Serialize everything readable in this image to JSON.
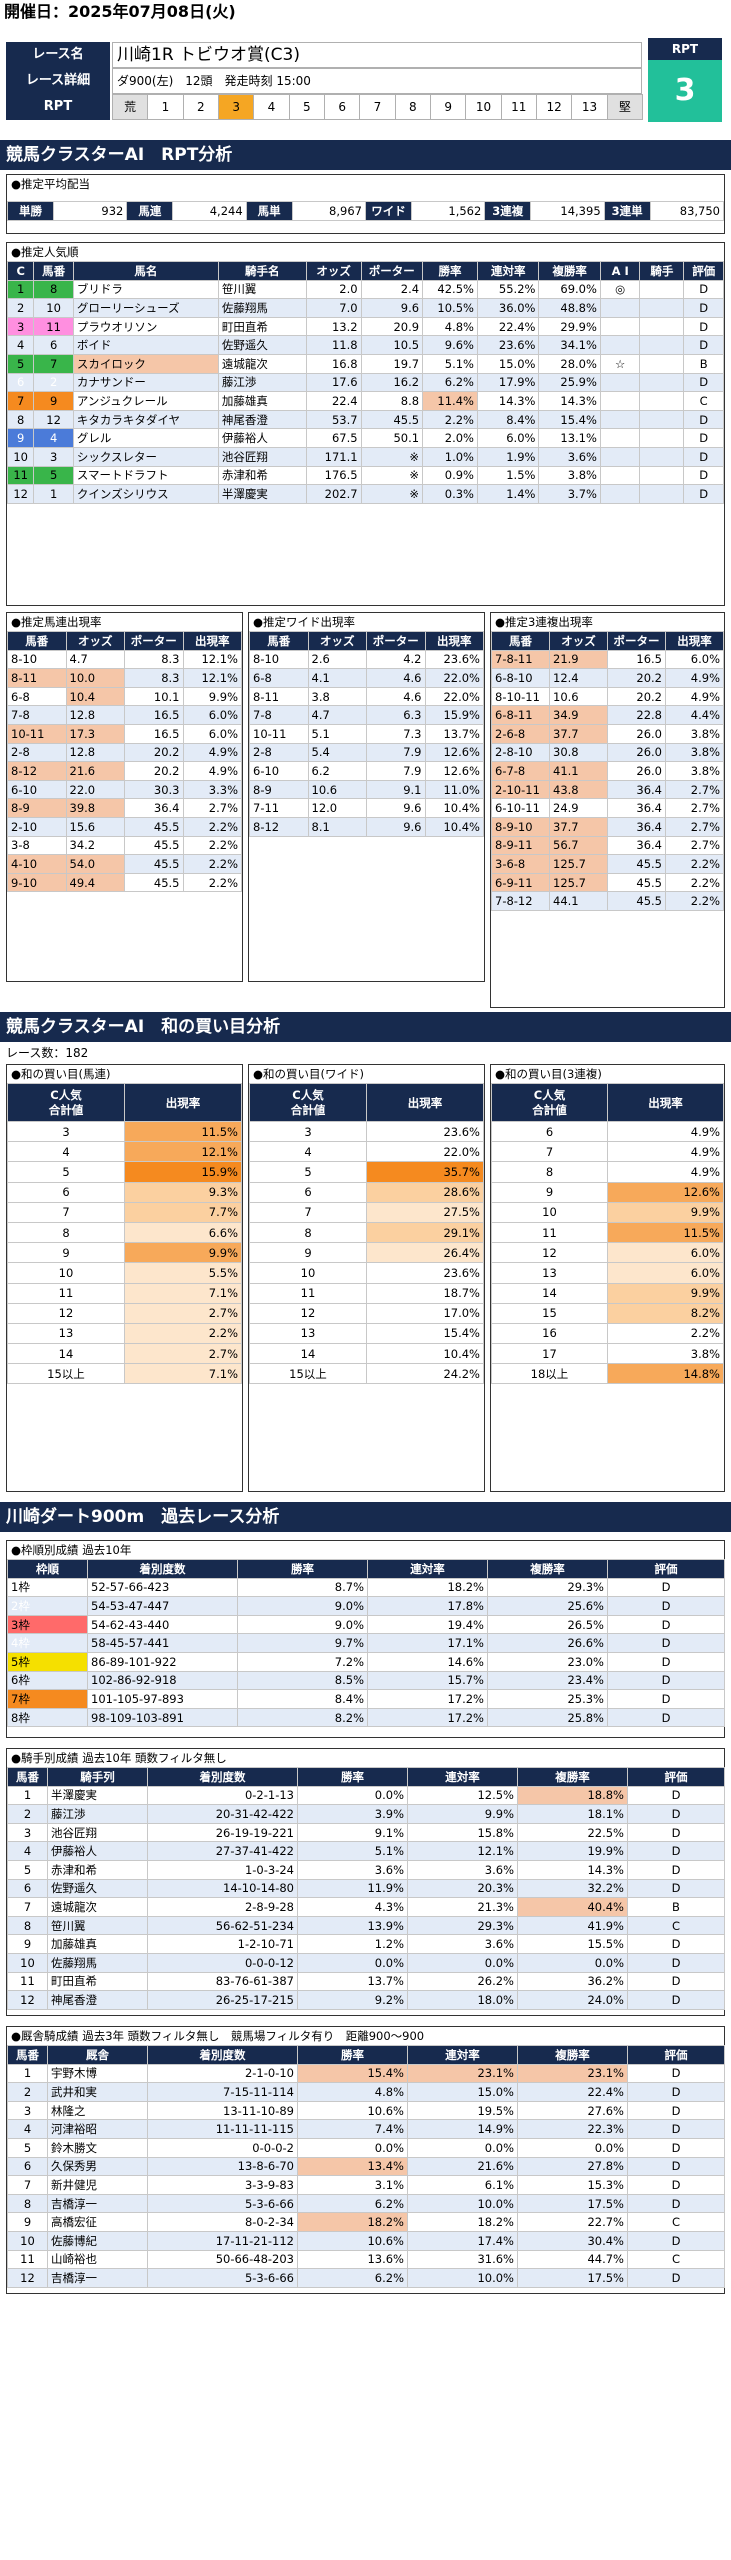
{
  "header": {
    "date_label": "開催日：2025年07月08日(火)"
  },
  "race": {
    "name_label": "レース名",
    "name": "川崎1R トビウオ賞(C3)",
    "detail_label": "レース詳細",
    "detail": "ダ900(左)　12頭　発走時刻 15:00",
    "rpt_label": "RPT",
    "rpt_scale": [
      "荒",
      "1",
      "2",
      "3",
      "4",
      "5",
      "6",
      "7",
      "8",
      "9",
      "10",
      "11",
      "12",
      "13",
      "堅"
    ],
    "rpt_top": "RPT",
    "rpt_value": "3"
  },
  "sec1": {
    "title": "競馬クラスターAI　RPT分析"
  },
  "payout": {
    "title": "●推定平均配当",
    "items": [
      [
        "単勝",
        "932"
      ],
      [
        "馬連",
        "4,244"
      ],
      [
        "馬単",
        "8,967"
      ],
      [
        "ワイド",
        "1,562"
      ],
      [
        "3連複",
        "14,395"
      ],
      [
        "3連単",
        "83,750"
      ]
    ]
  },
  "pop": {
    "title": "●推定人気順",
    "headers": [
      "C",
      "馬番",
      "馬名",
      "騎手名",
      "オッズ",
      "ポーター",
      "勝率",
      "連対率",
      "複勝率",
      "A I",
      "騎手",
      "評価"
    ],
    "rows": [
      [
        "1",
        "8",
        "ブリドラ",
        "笹川翼",
        "2.0",
        "2.4",
        "42.5%",
        "55.2%",
        "69.0%",
        "◎",
        "",
        "D"
      ],
      [
        "2",
        "10",
        "グローリーシューズ",
        "佐藤翔馬",
        "7.0",
        "9.6",
        "10.5%",
        "36.0%",
        "48.8%",
        "",
        "",
        "D"
      ],
      [
        "3",
        "11",
        "プラウオリソン",
        "町田直希",
        "13.2",
        "20.9",
        "4.8%",
        "22.4%",
        "29.9%",
        "",
        "",
        "D"
      ],
      [
        "4",
        "6",
        "ボイド",
        "佐野遥久",
        "11.8",
        "10.5",
        "9.6%",
        "23.6%",
        "34.1%",
        "",
        "",
        "D"
      ],
      [
        "5",
        "7",
        "スカイロック",
        "遠城龍次",
        "16.8",
        "19.7",
        "5.1%",
        "15.0%",
        "28.0%",
        "☆",
        "",
        "B"
      ],
      [
        "6",
        "2",
        "カナサンドー",
        "藤江渉",
        "17.6",
        "16.2",
        "6.2%",
        "17.9%",
        "25.9%",
        "",
        "",
        "D"
      ],
      [
        "7",
        "9",
        "アンジュクレール",
        "加藤雄真",
        "22.4",
        "8.8",
        "11.4%",
        "14.3%",
        "14.3%",
        "",
        "",
        "C"
      ],
      [
        "8",
        "12",
        "キタカラキタダイヤ",
        "神尾香澄",
        "53.7",
        "45.5",
        "2.2%",
        "8.4%",
        "15.4%",
        "",
        "",
        "D"
      ],
      [
        "9",
        "4",
        "グレル",
        "伊藤裕人",
        "67.5",
        "50.1",
        "2.0%",
        "6.0%",
        "13.1%",
        "",
        "",
        "D"
      ],
      [
        "10",
        "3",
        "シックスレター",
        "池谷匠翔",
        "171.1",
        "※",
        "1.0%",
        "1.9%",
        "3.6%",
        "",
        "",
        "D"
      ],
      [
        "11",
        "5",
        "スマートドラフト",
        "赤津和希",
        "176.5",
        "※",
        "0.9%",
        "1.5%",
        "3.8%",
        "",
        "",
        "D"
      ],
      [
        "12",
        "1",
        "クインズシリウス",
        "半澤慶実",
        "202.7",
        "※",
        "0.3%",
        "1.4%",
        "3.7%",
        "",
        "",
        "D"
      ]
    ]
  },
  "umaren": {
    "title": "●推定馬連出現率",
    "headers": [
      "馬番",
      "オッズ",
      "ポーター",
      "出現率"
    ],
    "rows": [
      [
        "8-10",
        "4.7",
        "8.3",
        "12.1%"
      ],
      [
        "8-11",
        "10.0",
        "8.3",
        "12.1%"
      ],
      [
        "6-8",
        "10.4",
        "10.1",
        "9.9%"
      ],
      [
        "7-8",
        "12.8",
        "16.5",
        "6.0%"
      ],
      [
        "10-11",
        "17.3",
        "16.5",
        "6.0%"
      ],
      [
        "2-8",
        "12.8",
        "20.2",
        "4.9%"
      ],
      [
        "8-12",
        "21.6",
        "20.2",
        "4.9%"
      ],
      [
        "6-10",
        "22.0",
        "30.3",
        "3.3%"
      ],
      [
        "8-9",
        "39.8",
        "36.4",
        "2.7%"
      ],
      [
        "2-10",
        "15.6",
        "45.5",
        "2.2%"
      ],
      [
        "3-8",
        "34.2",
        "45.5",
        "2.2%"
      ],
      [
        "4-10",
        "54.0",
        "45.5",
        "2.2%"
      ],
      [
        "9-10",
        "49.4",
        "45.5",
        "2.2%"
      ]
    ]
  },
  "wide": {
    "title": "●推定ワイド出現率",
    "headers": [
      "馬番",
      "オッズ",
      "ポーター",
      "出現率"
    ],
    "rows": [
      [
        "8-10",
        "2.6",
        "4.2",
        "23.6%"
      ],
      [
        "6-8",
        "4.1",
        "4.6",
        "22.0%"
      ],
      [
        "8-11",
        "3.8",
        "4.6",
        "22.0%"
      ],
      [
        "7-8",
        "4.7",
        "6.3",
        "15.9%"
      ],
      [
        "10-11",
        "5.1",
        "7.3",
        "13.7%"
      ],
      [
        "2-8",
        "5.4",
        "7.9",
        "12.6%"
      ],
      [
        "6-10",
        "6.2",
        "7.9",
        "12.6%"
      ],
      [
        "8-9",
        "10.6",
        "9.1",
        "11.0%"
      ],
      [
        "7-11",
        "12.0",
        "9.6",
        "10.4%"
      ],
      [
        "8-12",
        "8.1",
        "9.6",
        "10.4%"
      ]
    ]
  },
  "sanren": {
    "title": "●推定3連複出現率",
    "headers": [
      "馬番",
      "オッズ",
      "ポーター",
      "出現率"
    ],
    "rows": [
      [
        "7-8-11",
        "21.9",
        "16.5",
        "6.0%"
      ],
      [
        "6-8-10",
        "12.4",
        "20.2",
        "4.9%"
      ],
      [
        "8-10-11",
        "10.6",
        "20.2",
        "4.9%"
      ],
      [
        "6-8-11",
        "34.9",
        "22.8",
        "4.4%"
      ],
      [
        "2-6-8",
        "37.7",
        "26.0",
        "3.8%"
      ],
      [
        "2-8-10",
        "30.8",
        "26.0",
        "3.8%"
      ],
      [
        "6-7-8",
        "41.1",
        "26.0",
        "3.8%"
      ],
      [
        "2-10-11",
        "43.8",
        "36.4",
        "2.7%"
      ],
      [
        "6-10-11",
        "24.9",
        "36.4",
        "2.7%"
      ],
      [
        "8-9-10",
        "37.7",
        "36.4",
        "2.7%"
      ],
      [
        "8-9-11",
        "56.7",
        "36.4",
        "2.7%"
      ],
      [
        "3-6-8",
        "125.7",
        "45.5",
        "2.2%"
      ],
      [
        "6-9-11",
        "125.7",
        "45.5",
        "2.2%"
      ],
      [
        "7-8-12",
        "44.1",
        "45.5",
        "2.2%"
      ]
    ]
  },
  "sec2": {
    "title": "競馬クラスターAI　和の買い目分析",
    "count_label": "レース数：182"
  },
  "sum_umaren": {
    "title": "●和の買い目(馬連)",
    "h1": "C人気",
    "h1b": "合計値",
    "h2": "出現率",
    "rows": [
      [
        "3",
        "11.5%"
      ],
      [
        "4",
        "12.1%"
      ],
      [
        "5",
        "15.9%"
      ],
      [
        "6",
        "9.3%"
      ],
      [
        "7",
        "7.7%"
      ],
      [
        "8",
        "6.6%"
      ],
      [
        "9",
        "9.9%"
      ],
      [
        "10",
        "5.5%"
      ],
      [
        "11",
        "7.1%"
      ],
      [
        "12",
        "2.7%"
      ],
      [
        "13",
        "2.2%"
      ],
      [
        "14",
        "2.7%"
      ],
      [
        "15以上",
        "7.1%"
      ]
    ]
  },
  "sum_wide": {
    "title": "●和の買い目(ワイド)",
    "h1": "C人気",
    "h1b": "合計値",
    "h2": "出現率",
    "rows": [
      [
        "3",
        "23.6%"
      ],
      [
        "4",
        "22.0%"
      ],
      [
        "5",
        "35.7%"
      ],
      [
        "6",
        "28.6%"
      ],
      [
        "7",
        "27.5%"
      ],
      [
        "8",
        "29.1%"
      ],
      [
        "9",
        "26.4%"
      ],
      [
        "10",
        "23.6%"
      ],
      [
        "11",
        "18.7%"
      ],
      [
        "12",
        "17.0%"
      ],
      [
        "13",
        "15.4%"
      ],
      [
        "14",
        "10.4%"
      ],
      [
        "15以上",
        "24.2%"
      ]
    ]
  },
  "sum_sanren": {
    "title": "●和の買い目(3連複)",
    "h1": "C人気",
    "h1b": "合計値",
    "h2": "出現率",
    "rows": [
      [
        "6",
        "4.9%"
      ],
      [
        "7",
        "4.9%"
      ],
      [
        "8",
        "4.9%"
      ],
      [
        "9",
        "12.6%"
      ],
      [
        "10",
        "9.9%"
      ],
      [
        "11",
        "11.5%"
      ],
      [
        "12",
        "6.0%"
      ],
      [
        "13",
        "6.0%"
      ],
      [
        "14",
        "9.9%"
      ],
      [
        "15",
        "8.2%"
      ],
      [
        "16",
        "2.2%"
      ],
      [
        "17",
        "3.8%"
      ],
      [
        "18以上",
        "14.8%"
      ]
    ]
  },
  "sec3": {
    "title": "川崎ダート900m　過去レース分析"
  },
  "waku": {
    "title": "●枠順別成績 過去10年",
    "headers": [
      "枠順",
      "着別度数",
      "勝率",
      "連対率",
      "複勝率",
      "評価"
    ],
    "rows": [
      [
        "1枠",
        "52-57-66-423",
        "8.7%",
        "18.2%",
        "29.3%",
        "D"
      ],
      [
        "2枠",
        "54-53-47-447",
        "9.0%",
        "17.8%",
        "25.6%",
        "D"
      ],
      [
        "3枠",
        "54-62-43-440",
        "9.0%",
        "19.4%",
        "26.5%",
        "D"
      ],
      [
        "4枠",
        "58-45-57-441",
        "9.7%",
        "17.1%",
        "26.6%",
        "D"
      ],
      [
        "5枠",
        "86-89-101-922",
        "7.2%",
        "14.6%",
        "23.0%",
        "D"
      ],
      [
        "6枠",
        "102-86-92-918",
        "8.5%",
        "15.7%",
        "23.4%",
        "D"
      ],
      [
        "7枠",
        "101-105-97-893",
        "8.4%",
        "17.2%",
        "25.3%",
        "D"
      ],
      [
        "8枠",
        "98-109-103-891",
        "8.2%",
        "17.2%",
        "25.8%",
        "D"
      ]
    ]
  },
  "jockey": {
    "title": "●騎手別成績 過去10年 頭数フィルタ無し",
    "headers": [
      "馬番",
      "騎手列",
      "着別度数",
      "勝率",
      "連対率",
      "複勝率",
      "評価"
    ],
    "rows": [
      [
        "1",
        "半澤慶実",
        "0-2-1-13",
        "0.0%",
        "12.5%",
        "18.8%",
        "D"
      ],
      [
        "2",
        "藤江渉",
        "20-31-42-422",
        "3.9%",
        "9.9%",
        "18.1%",
        "D"
      ],
      [
        "3",
        "池谷匠翔",
        "26-19-19-221",
        "9.1%",
        "15.8%",
        "22.5%",
        "D"
      ],
      [
        "4",
        "伊藤裕人",
        "27-37-41-422",
        "5.1%",
        "12.1%",
        "19.9%",
        "D"
      ],
      [
        "5",
        "赤津和希",
        "1-0-3-24",
        "3.6%",
        "3.6%",
        "14.3%",
        "D"
      ],
      [
        "6",
        "佐野遥久",
        "14-10-14-80",
        "11.9%",
        "20.3%",
        "32.2%",
        "D"
      ],
      [
        "7",
        "遠城龍次",
        "2-8-9-28",
        "4.3%",
        "21.3%",
        "40.4%",
        "B"
      ],
      [
        "8",
        "笹川翼",
        "56-62-51-234",
        "13.9%",
        "29.3%",
        "41.9%",
        "C"
      ],
      [
        "9",
        "加藤雄真",
        "1-2-10-71",
        "1.2%",
        "3.6%",
        "15.5%",
        "D"
      ],
      [
        "10",
        "佐藤翔馬",
        "0-0-0-12",
        "0.0%",
        "0.0%",
        "0.0%",
        "D"
      ],
      [
        "11",
        "町田直希",
        "83-76-61-387",
        "13.7%",
        "26.2%",
        "36.2%",
        "D"
      ],
      [
        "12",
        "神尾香澄",
        "26-25-17-215",
        "9.2%",
        "18.0%",
        "24.0%",
        "D"
      ]
    ]
  },
  "trainer": {
    "title": "●厩舎騎成績 過去3年 頭数フィルタ無し　競馬場フィルタ有り　距離900～900",
    "headers": [
      "馬番",
      "厩舎",
      "着別度数",
      "勝率",
      "連対率",
      "複勝率",
      "評価"
    ],
    "rows": [
      [
        "1",
        "宇野木博",
        "2-1-0-10",
        "15.4%",
        "23.1%",
        "23.1%",
        "D"
      ],
      [
        "2",
        "武井和実",
        "7-15-11-114",
        "4.8%",
        "15.0%",
        "22.4%",
        "D"
      ],
      [
        "3",
        "林隆之",
        "13-11-10-89",
        "10.6%",
        "19.5%",
        "27.6%",
        "D"
      ],
      [
        "4",
        "河津裕昭",
        "11-11-11-115",
        "7.4%",
        "14.9%",
        "22.3%",
        "D"
      ],
      [
        "5",
        "鈴木勝文",
        "0-0-0-2",
        "0.0%",
        "0.0%",
        "0.0%",
        "D"
      ],
      [
        "6",
        "久保秀男",
        "13-8-6-70",
        "13.4%",
        "21.6%",
        "27.8%",
        "D"
      ],
      [
        "7",
        "新井健児",
        "3-3-9-83",
        "3.1%",
        "6.1%",
        "15.3%",
        "D"
      ],
      [
        "8",
        "吉橋淳一",
        "5-3-6-66",
        "6.2%",
        "10.0%",
        "17.5%",
        "D"
      ],
      [
        "9",
        "高橋宏征",
        "8-0-2-34",
        "18.2%",
        "18.2%",
        "22.7%",
        "C"
      ],
      [
        "10",
        "佐藤博紀",
        "17-11-21-112",
        "10.6%",
        "17.4%",
        "30.4%",
        "D"
      ],
      [
        "11",
        "山崎裕也",
        "50-66-48-203",
        "13.6%",
        "31.6%",
        "44.7%",
        "C"
      ],
      [
        "12",
        "吉橋淳一",
        "5-3-6-66",
        "6.2%",
        "10.0%",
        "17.5%",
        "D"
      ]
    ]
  }
}
